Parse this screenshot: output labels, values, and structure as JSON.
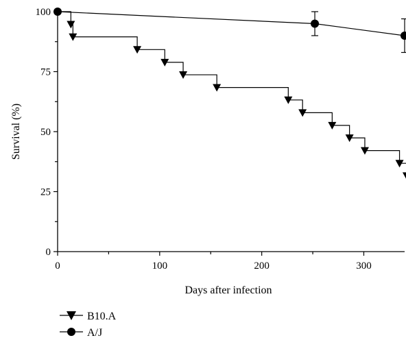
{
  "chart_data": {
    "type": "line",
    "xlabel": "Days after infection",
    "ylabel": "Survival (%)",
    "xlim": [
      0,
      340
    ],
    "ylim": [
      0,
      100
    ],
    "x_ticks": [
      0,
      100,
      200,
      300
    ],
    "y_ticks": [
      0,
      25,
      50,
      75,
      100
    ],
    "grid": false,
    "legend_placement": "bottom-left",
    "series": [
      {
        "name": "B10.A",
        "marker": "triangle-down",
        "step": true,
        "points": [
          [
            0,
            100
          ],
          [
            13,
            94.7
          ],
          [
            15,
            89.5
          ],
          [
            78,
            84.2
          ],
          [
            105,
            78.9
          ],
          [
            123,
            73.7
          ],
          [
            156,
            68.4
          ],
          [
            226,
            63.2
          ],
          [
            240,
            57.9
          ],
          [
            269,
            52.6
          ],
          [
            286,
            47.4
          ],
          [
            301,
            42.1
          ],
          [
            335,
            36.8
          ],
          [
            342,
            31.6
          ]
        ]
      },
      {
        "name": "A/J",
        "marker": "circle",
        "step": false,
        "points": [
          [
            0,
            100
          ],
          [
            252,
            95
          ],
          [
            340,
            90
          ]
        ],
        "error": [
          null,
          5,
          7
        ]
      }
    ]
  }
}
